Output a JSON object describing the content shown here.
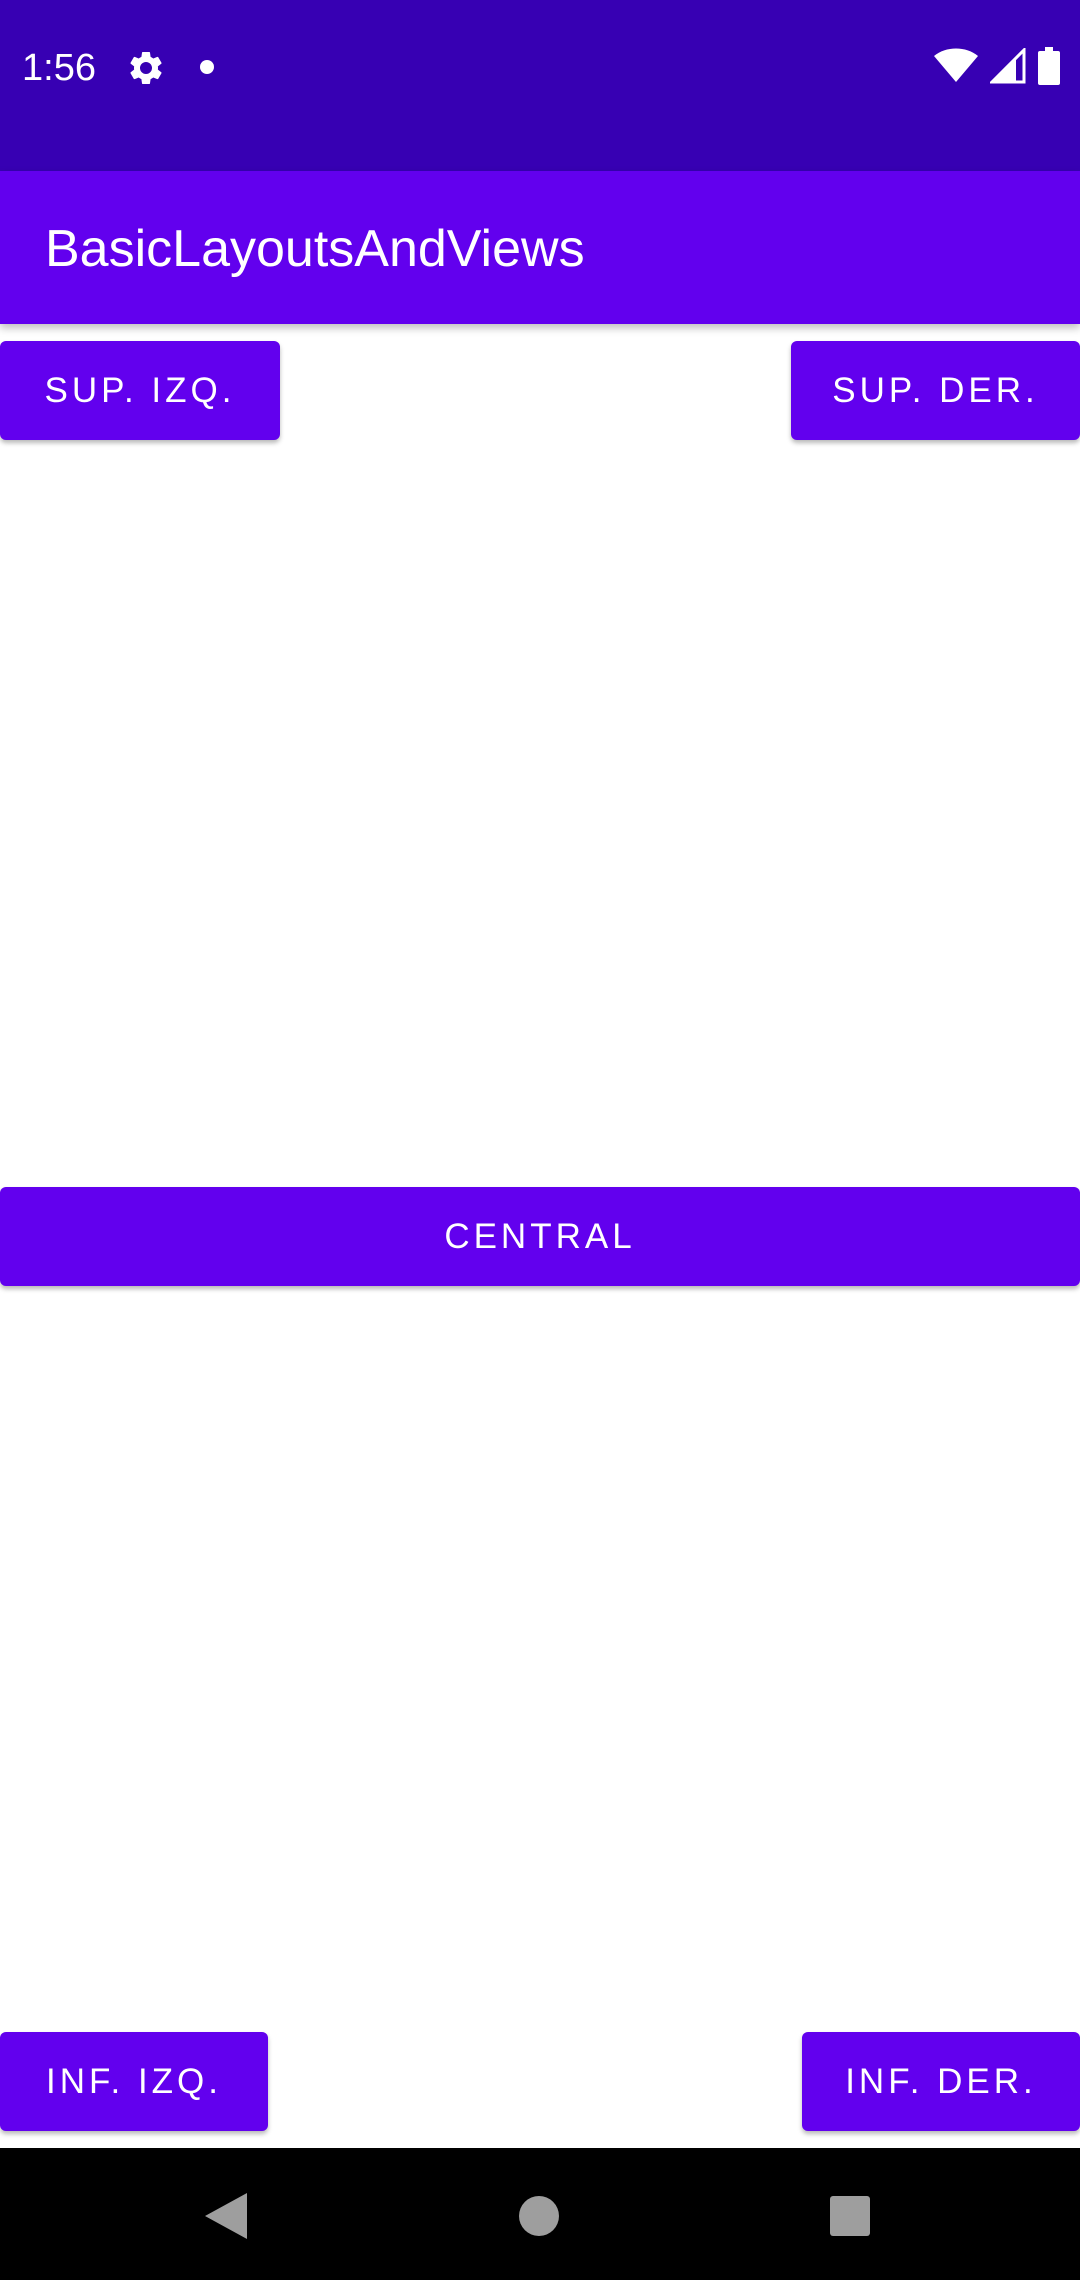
{
  "status_bar": {
    "time": "1:56",
    "icons": [
      "gear-icon",
      "notification-dot-icon",
      "wifi-icon",
      "cell-signal-icon",
      "battery-icon"
    ]
  },
  "app_bar": {
    "title": "BasicLayoutsAndViews"
  },
  "buttons": {
    "top_left": "SUP. IZQ.",
    "top_right": "SUP. DER.",
    "central": "CENTRAL",
    "bottom_left": "INF. IZQ.",
    "bottom_right": "INF. DER."
  },
  "nav_bar": {
    "icons": [
      "back-icon",
      "home-icon",
      "recents-icon"
    ]
  },
  "colors": {
    "status_bar": "#3700B3",
    "primary": "#6200EE",
    "background": "#FFFFFF",
    "nav_bar": "#000000"
  }
}
